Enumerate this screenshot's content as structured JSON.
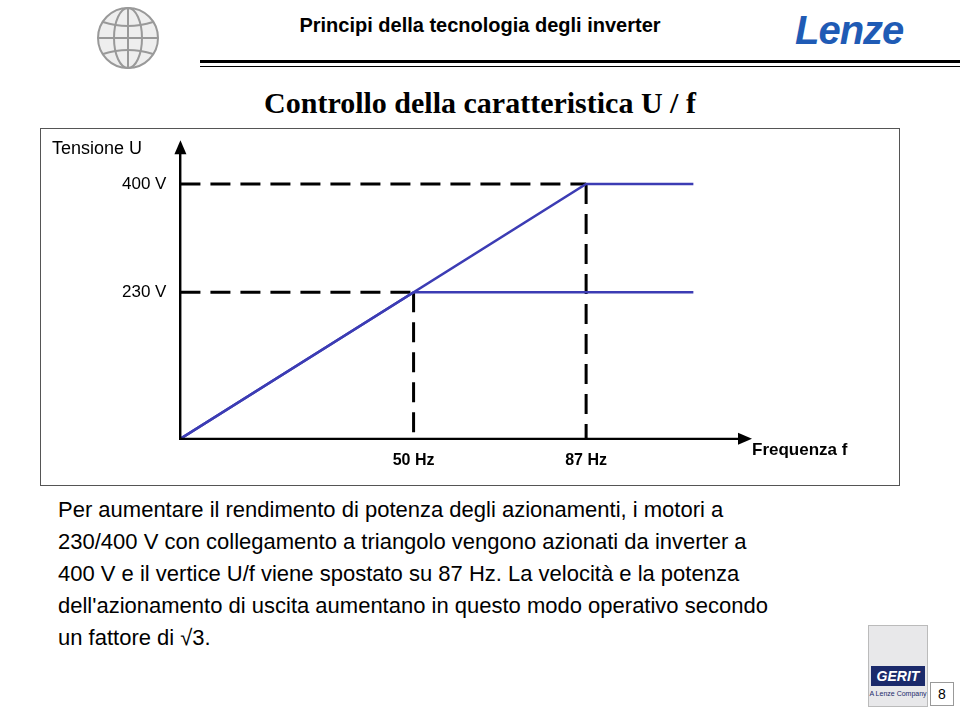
{
  "header": {
    "title": "Principi della tecnologia degli inverter",
    "logo": "Lenze"
  },
  "chart_data": {
    "type": "line",
    "title": "Controllo della caratteristica U / f",
    "x_label": "Frequenza f",
    "y_label": "Tensione U",
    "xlim": [
      0,
      120
    ],
    "ylim": [
      0,
      450
    ],
    "xticks": [
      {
        "value": 50,
        "label": "50 Hz"
      },
      {
        "value": 87,
        "label": "87 Hz"
      }
    ],
    "yticks": [
      {
        "value": 230,
        "label": "230 V"
      },
      {
        "value": 400,
        "label": "400 V"
      }
    ],
    "grid": false,
    "series": [
      {
        "color": "#3c3cb4",
        "line_style": "solid",
        "x": [
          0,
          50,
          110
        ],
        "values": [
          0,
          230,
          230
        ]
      },
      {
        "color": "#3c3cb4",
        "line_style": "solid",
        "x": [
          0,
          87,
          110
        ],
        "values": [
          0,
          400,
          400
        ]
      }
    ]
  },
  "body": [
    "Per aumentare il rendimento di potenza degli azionamenti, i motori a",
    "230/400 V con collegamento a triangolo vengono azionati da inverter a",
    "400 V e il vertice U/f viene spostato su 87 Hz. La velocità e la potenza",
    "dell'azionamento di uscita aumentano in questo modo operativo secondo",
    "un fattore di √3."
  ],
  "footer": {
    "logo": "GERIT",
    "logo_subtitle": "A Lenze Company",
    "page": 8
  }
}
